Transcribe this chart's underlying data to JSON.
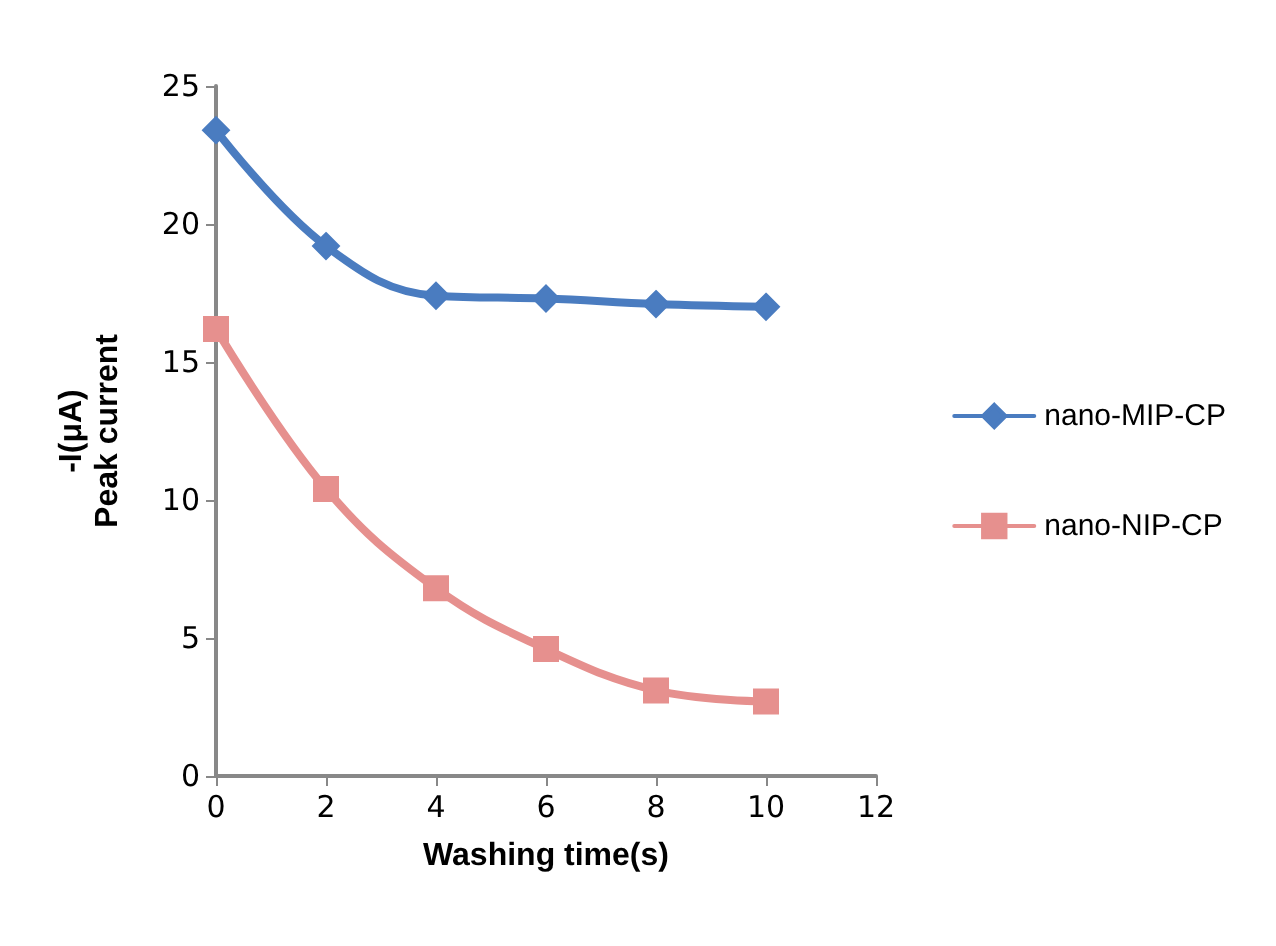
{
  "chart_data": {
    "type": "line",
    "xlabel": "Washing time(s)",
    "ylabel": "-I(μA)\nPeak current",
    "x": [
      0,
      2,
      4,
      6,
      8,
      10
    ],
    "series": [
      {
        "name": "nano-MIP-CP",
        "color": "#4a7cc0",
        "marker": "diamond",
        "values": [
          23.4,
          19.2,
          17.4,
          17.3,
          17.1,
          17.0
        ]
      },
      {
        "name": "nano-NIP-CP",
        "color": "#e6908e",
        "marker": "square",
        "values": [
          16.2,
          10.4,
          6.8,
          4.6,
          3.1,
          2.7
        ]
      }
    ],
    "xlim": [
      0,
      12
    ],
    "xticks": [
      0,
      2,
      4,
      6,
      8,
      10,
      12
    ],
    "ylim": [
      0,
      25
    ],
    "yticks": [
      0,
      5,
      10,
      15,
      20,
      25
    ],
    "grid": false,
    "legend": "right",
    "line_style": "solid"
  }
}
